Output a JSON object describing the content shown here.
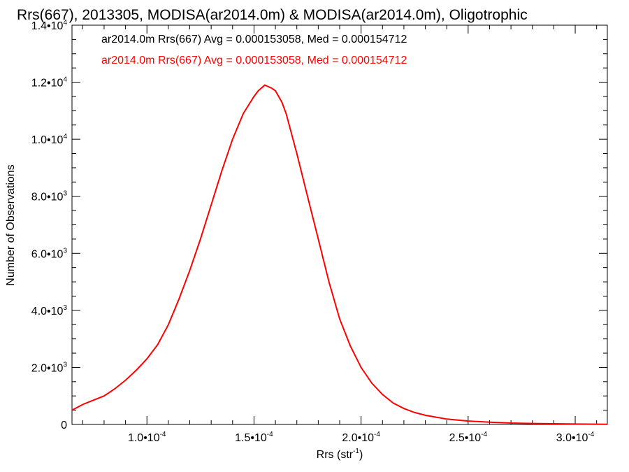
{
  "chart_data": {
    "type": "line",
    "title": "Rrs(667), 2013305, MODISA(ar2014.0m) & MODISA(ar2014.0m), Oligotrophic",
    "xlabel": "Rrs (str",
    "xlabel_sup": "-1",
    "xlabel_suffix": ")",
    "ylabel": "Number of Observations",
    "xlim": [
      6.5e-05,
      0.000315
    ],
    "ylim": [
      0,
      14000
    ],
    "grid": false,
    "legend_position": "top-left",
    "x_ticks": [
      {
        "value": 0.0001,
        "mant": "1.0•10",
        "exp": "-4"
      },
      {
        "value": 0.00015,
        "mant": "1.5•10",
        "exp": "-4"
      },
      {
        "value": 0.0002,
        "mant": "2.0•10",
        "exp": "-4"
      },
      {
        "value": 0.00025,
        "mant": "2.5•10",
        "exp": "-4"
      },
      {
        "value": 0.0003,
        "mant": "3.0•10",
        "exp": "-4"
      }
    ],
    "y_ticks": [
      {
        "value": 0,
        "mant": "0",
        "exp": ""
      },
      {
        "value": 2000,
        "mant": "2.0•10",
        "exp": "3"
      },
      {
        "value": 4000,
        "mant": "4.0•10",
        "exp": "3"
      },
      {
        "value": 6000,
        "mant": "6.0•10",
        "exp": "3"
      },
      {
        "value": 8000,
        "mant": "8.0•10",
        "exp": "3"
      },
      {
        "value": 10000,
        "mant": "1.0•10",
        "exp": "4"
      },
      {
        "value": 12000,
        "mant": "1.2•10",
        "exp": "4"
      },
      {
        "value": 14000,
        "mant": "1.4•10",
        "exp": "4"
      }
    ],
    "annotations": [
      {
        "text": "ar2014.0m Rrs(667) Avg = 0.000153058, Med = 0.000154712",
        "color": "#000000"
      },
      {
        "text": "ar2014.0m Rrs(667) Avg = 0.000153058, Med = 0.000154712",
        "color": "#ff0000"
      }
    ],
    "series": [
      {
        "color": "#ff0000",
        "style": "step",
        "x": [
          6.5e-05,
          7e-05,
          7.5e-05,
          8e-05,
          8.5e-05,
          9e-05,
          9.5e-05,
          0.0001,
          0.000105,
          0.00011,
          0.000115,
          0.00012,
          0.000125,
          0.00013,
          0.000135,
          0.00014,
          0.000145,
          0.00015,
          0.000152,
          0.000155,
          0.000158,
          0.00016,
          0.000163,
          0.000165,
          0.00017,
          0.000175,
          0.00018,
          0.000185,
          0.00019,
          0.000195,
          0.0002,
          0.000205,
          0.00021,
          0.000215,
          0.00022,
          0.000225,
          0.00023,
          0.00024,
          0.00025,
          0.00026,
          0.00027,
          0.00028,
          0.00029,
          0.0003,
          0.00031,
          0.000315
        ],
        "y": [
          500,
          700,
          850,
          1000,
          1250,
          1550,
          1900,
          2300,
          2800,
          3500,
          4400,
          5400,
          6500,
          7700,
          8900,
          10000,
          10900,
          11500,
          11700,
          11900,
          11800,
          11700,
          11300,
          10900,
          9500,
          8000,
          6500,
          5000,
          3700,
          2750,
          2000,
          1450,
          1050,
          750,
          560,
          420,
          320,
          190,
          120,
          80,
          50,
          35,
          25,
          15,
          10,
          5
        ]
      }
    ]
  }
}
